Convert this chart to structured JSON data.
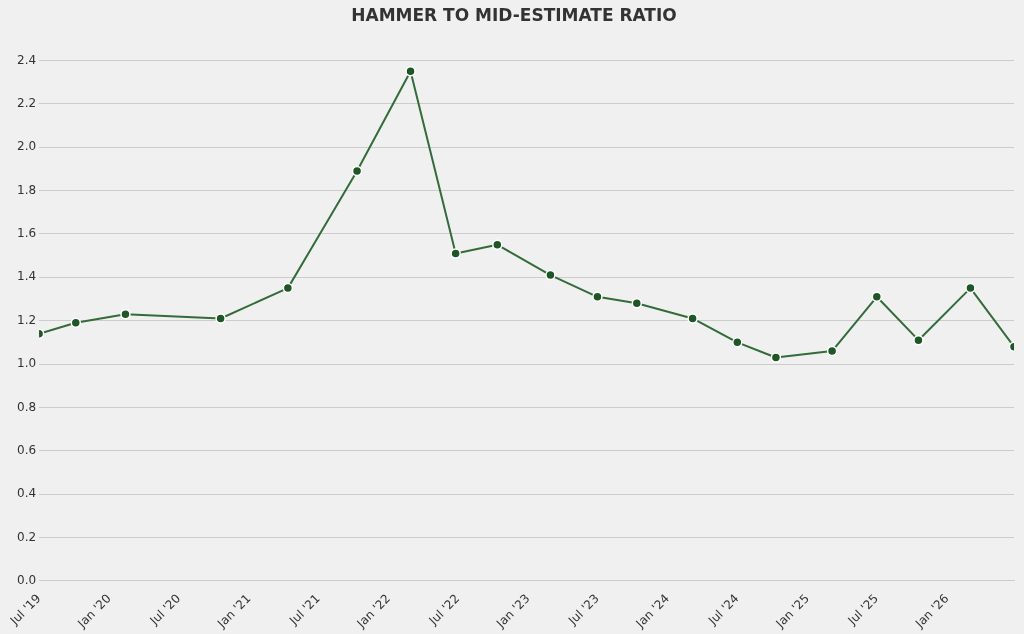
{
  "chart_data": {
    "type": "line",
    "title": "HAMMER TO MID-ESTIMATE RATIO",
    "x": [
      "2019-07-01",
      "2019-10-05",
      "2020-02-12",
      "2020-10-18",
      "2021-04-12",
      "2021-10-10",
      "2022-02-27",
      "2022-06-25",
      "2022-10-12",
      "2023-02-28",
      "2023-07-01",
      "2023-10-12",
      "2024-03-06",
      "2024-07-01",
      "2024-10-10",
      "2025-03-06",
      "2025-07-01",
      "2025-10-18",
      "2026-03-03",
      "2026-06-25"
    ],
    "series": [
      {
        "color": "#336b3a",
        "values": [
          1.14,
          1.19,
          1.23,
          1.21,
          1.35,
          1.89,
          2.35,
          1.51,
          1.55,
          1.41,
          1.31,
          1.28,
          1.21,
          1.1,
          1.03,
          1.06,
          1.31,
          1.11,
          1.35,
          1.08
        ]
      }
    ],
    "xlim": [
      "2019-07-01",
      "2026-06-25"
    ],
    "xticks": [
      {
        "value": "2019-07",
        "label": "Jul '19"
      },
      {
        "value": "2020-01",
        "label": "Jan '20"
      },
      {
        "value": "2020-07",
        "label": "Jul '20"
      },
      {
        "value": "2021-01",
        "label": "Jan '21"
      },
      {
        "value": "2021-07",
        "label": "Jul '21"
      },
      {
        "value": "2022-01",
        "label": "Jan '22"
      },
      {
        "value": "2022-07",
        "label": "Jul '22"
      },
      {
        "value": "2023-01",
        "label": "Jan '23"
      },
      {
        "value": "2023-07",
        "label": "Jul '23"
      },
      {
        "value": "2024-01",
        "label": "Jan '24"
      },
      {
        "value": "2024-07",
        "label": "Jul '24"
      },
      {
        "value": "2025-01",
        "label": "Jan '25"
      },
      {
        "value": "2025-07",
        "label": "Jul '25"
      },
      {
        "value": "2026-01",
        "label": "Jan '26"
      }
    ],
    "ylim": [
      0,
      2.4
    ],
    "yticks": [
      {
        "value": 0,
        "label": "0.0"
      },
      {
        "value": 0.2,
        "label": "0.2"
      },
      {
        "value": 0.4,
        "label": "0.4"
      },
      {
        "value": 0.6,
        "label": "0.6"
      },
      {
        "value": 0.8,
        "label": "0.8"
      },
      {
        "value": 1,
        "label": "1.0"
      },
      {
        "value": 1.2,
        "label": "1.2"
      },
      {
        "value": 1.4,
        "label": "1.4"
      },
      {
        "value": 1.6,
        "label": "1.6"
      },
      {
        "value": 1.8,
        "label": "1.8"
      },
      {
        "value": 2,
        "label": "2.0"
      },
      {
        "value": 2.2,
        "label": "2.2"
      },
      {
        "value": 2.4,
        "label": "2.4"
      }
    ],
    "grid": "y",
    "legend": false,
    "marker": "circle",
    "line_style": "solid"
  }
}
